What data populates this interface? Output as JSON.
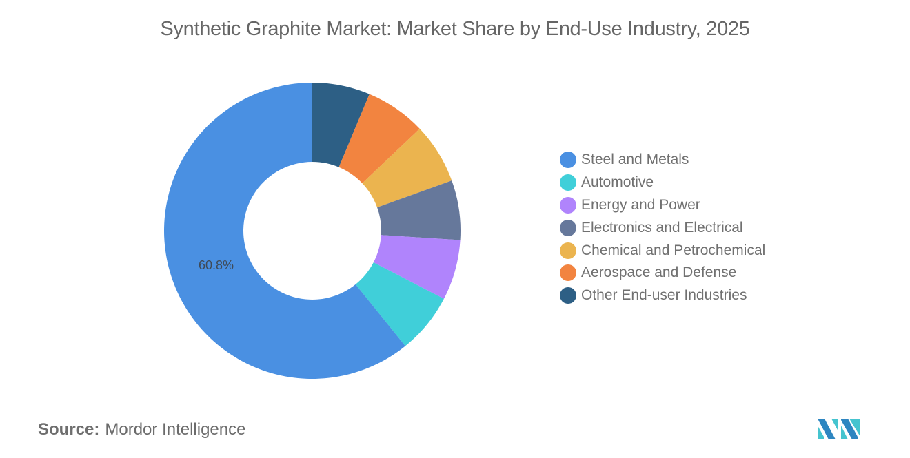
{
  "title": "Synthetic Graphite Market: Market Share by End-Use Industry, 2025",
  "source": {
    "key": "Source:",
    "value": "Mordor Intelligence"
  },
  "logo": {
    "name": "mordor-intelligence-logo"
  },
  "chart_data": {
    "type": "pie",
    "variant": "donut",
    "title": "Synthetic Graphite Market: Market Share by End-Use Industry, 2025",
    "categories": [
      "Steel and Metals",
      "Automotive",
      "Energy and Power",
      "Electronics and Electrical",
      "Chemical and Petrochemical",
      "Aerospace and Defense",
      "Other End-user Industries"
    ],
    "values": [
      60.8,
      6.6,
      6.6,
      6.5,
      6.6,
      6.6,
      6.3
    ],
    "unit": "%",
    "colors": [
      "#4a90e2",
      "#40cfd9",
      "#b084fc",
      "#66789b",
      "#ebb44f",
      "#f28440",
      "#2d5f85"
    ],
    "data_labels": [
      {
        "category": "Steel and Metals",
        "text": "60.8%"
      }
    ],
    "legend_position": "right",
    "start_angle_deg": 0,
    "direction": "counterclockwise-listing (Steel and Metals occupies left side; remaining slices clockwise from top in reverse legend order)"
  },
  "legend": {
    "items": [
      {
        "label": "Steel and Metals",
        "color": "#4a90e2"
      },
      {
        "label": "Automotive",
        "color": "#40cfd9"
      },
      {
        "label": "Energy and Power",
        "color": "#b084fc"
      },
      {
        "label": "Electronics and Electrical",
        "color": "#66789b"
      },
      {
        "label": "Chemical and Petrochemical",
        "color": "#ebb44f"
      },
      {
        "label": "Aerospace and Defense",
        "color": "#f28440"
      },
      {
        "label": "Other End-user Industries",
        "color": "#2d5f85"
      }
    ]
  },
  "labels": {
    "steel_pct": "60.8%"
  }
}
